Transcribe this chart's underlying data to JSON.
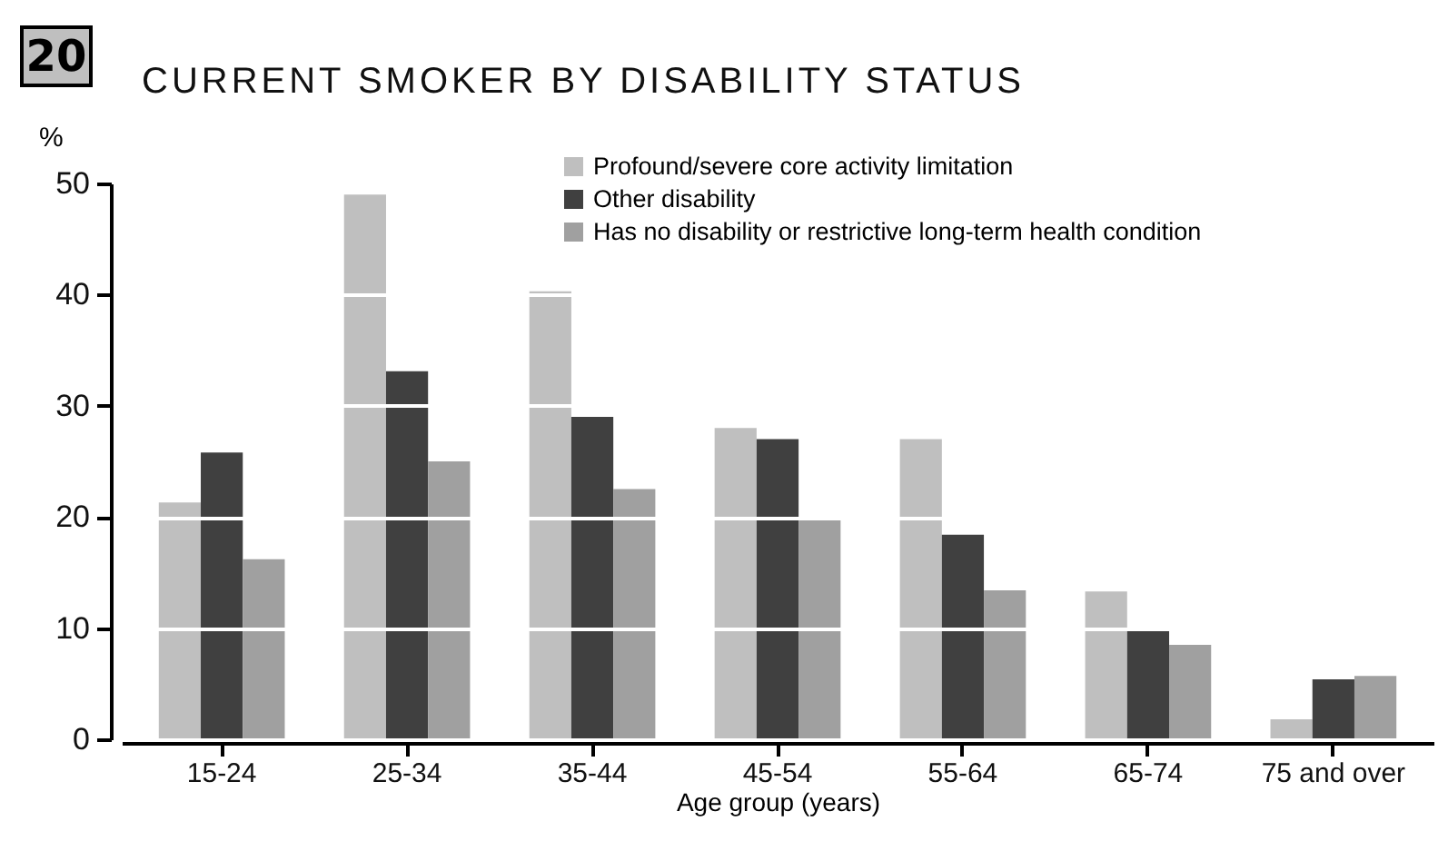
{
  "chart_data": {
    "type": "bar",
    "title": "CURRENT SMOKER BY DISABILITY STATUS",
    "annotations": [
      "20"
    ],
    "xlabel": "Age group (years)",
    "ylabel": "%",
    "categories": [
      "15-24",
      "25-34",
      "35-44",
      "45-54",
      "55-64",
      "65-74",
      "75 and over"
    ],
    "series": [
      {
        "name": "Profound/severe core activity limitation",
        "color": "#bfbfbf",
        "values": [
          21.3,
          49,
          40.3,
          28,
          27,
          13.3,
          1.8
        ]
      },
      {
        "name": "Other disability",
        "color": "#404040",
        "values": [
          25.8,
          33.1,
          29,
          27,
          18.4,
          10,
          5.4
        ]
      },
      {
        "name": "Has no disability or restrictive long-term health condition",
        "color": "#a0a0a0",
        "values": [
          16.2,
          25,
          22.5,
          19.8,
          13.4,
          8.5,
          5.7
        ]
      }
    ],
    "ylim": [
      0,
      50
    ],
    "yticks": [
      0,
      10,
      20,
      30,
      40,
      50
    ],
    "grid": "y",
    "legend": "top right"
  }
}
